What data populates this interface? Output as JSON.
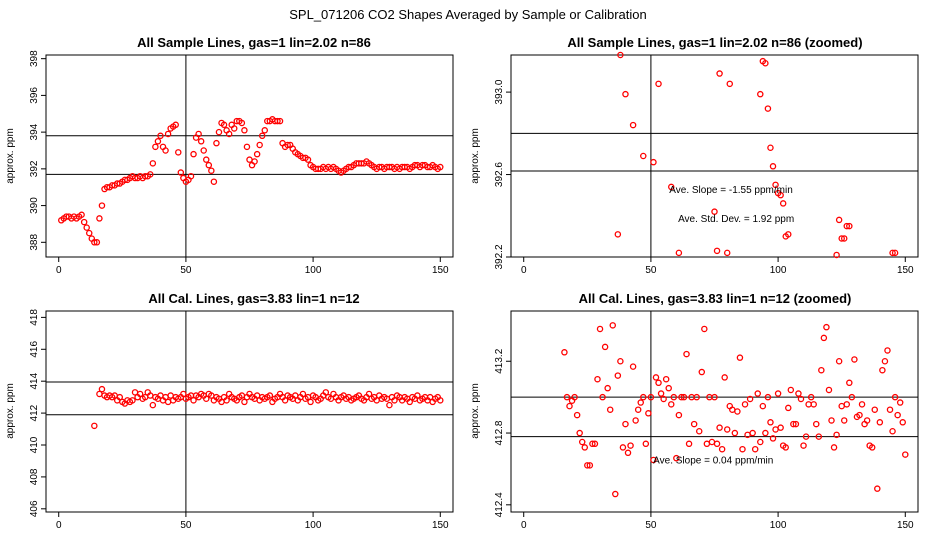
{
  "main_title": "SPL_071206  CO2 Shapes Averaged by Sample or Calibration",
  "colors": {
    "points": "#ff0000",
    "axes": "#000000",
    "background": "#ffffff"
  },
  "chart_data": [
    {
      "id": "p1",
      "type": "scatter",
      "title": "All Sample Lines, gas=1 lin=2.02 n=86",
      "xlabel": "",
      "ylabel": "approx. ppm",
      "xlim": [
        -5,
        155
      ],
      "ylim": [
        387.2,
        398.2
      ],
      "xticks": [
        0,
        50,
        100,
        150
      ],
      "xtick_labels": [
        "0",
        "50",
        "100",
        "150"
      ],
      "yticks": [
        388,
        390,
        392,
        394,
        396,
        398
      ],
      "ytick_labels": [
        "388",
        "390",
        "392",
        "394",
        "396",
        "398"
      ],
      "vlines": [
        50
      ],
      "hlines": [
        393.8,
        391.7
      ],
      "annotations": [],
      "x": [
        1,
        2,
        3,
        4,
        5,
        6,
        7,
        8,
        9,
        10,
        11,
        12,
        13,
        14,
        15,
        16,
        17,
        18,
        19,
        20,
        21,
        22,
        23,
        24,
        25,
        26,
        27,
        28,
        29,
        30,
        31,
        32,
        33,
        34,
        35,
        36,
        37,
        38,
        39,
        40,
        41,
        42,
        43,
        44,
        45,
        46,
        47,
        48,
        49,
        50,
        51,
        52,
        53,
        54,
        55,
        56,
        57,
        58,
        59,
        60,
        61,
        62,
        63,
        64,
        65,
        66,
        67,
        68,
        69,
        70,
        71,
        72,
        73,
        74,
        75,
        76,
        77,
        78,
        79,
        80,
        81,
        82,
        83,
        84,
        85,
        86,
        87,
        88,
        89,
        90,
        91,
        92,
        93,
        94,
        95,
        96,
        97,
        98,
        99,
        100,
        101,
        102,
        103,
        104,
        105,
        106,
        107,
        108,
        109,
        110,
        111,
        112,
        113,
        114,
        115,
        116,
        117,
        118,
        119,
        120,
        121,
        122,
        123,
        124,
        125,
        126,
        127,
        128,
        129,
        130,
        131,
        132,
        133,
        134,
        135,
        136,
        137,
        138,
        139,
        140,
        141,
        142,
        143,
        144,
        145,
        146,
        147,
        148,
        149,
        150
      ],
      "values": [
        389.2,
        389.3,
        389.4,
        389.4,
        389.3,
        389.4,
        389.3,
        389.4,
        389.5,
        389.1,
        388.8,
        388.5,
        388.2,
        388.0,
        388.0,
        389.3,
        390.0,
        390.9,
        391.0,
        391.0,
        391.1,
        391.1,
        391.2,
        391.2,
        391.3,
        391.4,
        391.4,
        391.5,
        391.6,
        391.5,
        391.5,
        391.6,
        391.5,
        391.6,
        391.6,
        391.7,
        392.3,
        393.2,
        393.5,
        393.8,
        393.2,
        393.0,
        393.9,
        394.2,
        394.3,
        394.4,
        392.9,
        391.8,
        391.5,
        391.3,
        391.4,
        391.6,
        392.8,
        393.7,
        393.9,
        393.5,
        393.0,
        392.5,
        392.2,
        391.9,
        391.3,
        393.4,
        394.0,
        394.5,
        394.4,
        394.1,
        393.9,
        394.4,
        394.2,
        394.6,
        394.6,
        394.5,
        394.1,
        393.2,
        392.5,
        392.2,
        392.4,
        392.8,
        393.3,
        393.8,
        394.1,
        394.6,
        394.6,
        394.7,
        394.6,
        394.6,
        394.6,
        393.4,
        393.2,
        393.3,
        393.3,
        393.1,
        392.9,
        392.8,
        392.7,
        392.6,
        392.6,
        392.5,
        392.2,
        392.1,
        392.0,
        392.0,
        392.0,
        392.1,
        392.0,
        392.1,
        392.0,
        392.1,
        392.0,
        391.9,
        391.8,
        391.9,
        392.0,
        392.1,
        392.1,
        392.2,
        392.3,
        392.3,
        392.3,
        392.3,
        392.4,
        392.3,
        392.2,
        392.1,
        392.0,
        392.1,
        392.1,
        392.0,
        392.1,
        392.1,
        392.1,
        392.0,
        392.1,
        392.0,
        392.1,
        392.1,
        392.1,
        392.0,
        392.1,
        392.2,
        392.2,
        392.1,
        392.2,
        392.2,
        392.1,
        392.1,
        392.2,
        392.1,
        392.0,
        392.1
      ]
    },
    {
      "id": "p2",
      "type": "scatter",
      "title": "All Sample Lines, gas=1 lin=2.02 n=86 (zoomed)",
      "xlabel": "",
      "ylabel": "approx. ppm",
      "xlim": [
        -5,
        155
      ],
      "ylim": [
        392.2,
        393.18
      ],
      "xticks": [
        0,
        50,
        100,
        150
      ],
      "xtick_labels": [
        "0",
        "50",
        "100",
        "150"
      ],
      "yticks": [
        392.2,
        392.6,
        393.0
      ],
      "ytick_labels": [
        "392.2",
        "392.6",
        "393.0"
      ],
      "vlines": [
        50
      ],
      "hlines": [
        392.8,
        392.617
      ],
      "annotations": [
        {
          "text": "Ave. Slope =   -1.55  ppm/min",
          "x": 81.5,
          "y": 392.51
        },
        {
          "text": "Ave. Std. Dev. =  1.92  ppm",
          "x": 83.5,
          "y": 392.37
        }
      ],
      "x": [
        37,
        38,
        40,
        43,
        47,
        51,
        53,
        58,
        61,
        75,
        76,
        77,
        80,
        81,
        93,
        94,
        95,
        96,
        97,
        98,
        99,
        100,
        101,
        102,
        103,
        104,
        123,
        124,
        125,
        126,
        127,
        128,
        145,
        146
      ],
      "values": [
        392.31,
        393.18,
        392.99,
        392.84,
        392.69,
        392.66,
        393.04,
        392.54,
        392.22,
        392.42,
        392.23,
        393.09,
        392.22,
        393.04,
        392.99,
        393.15,
        393.14,
        392.92,
        392.73,
        392.64,
        392.55,
        392.51,
        392.5,
        392.46,
        392.3,
        392.31,
        392.21,
        392.38,
        392.29,
        392.29,
        392.35,
        392.35,
        392.22,
        392.22
      ]
    },
    {
      "id": "p3",
      "type": "scatter",
      "title": "All Cal. Lines, gas=3.83 lin=1 n=12",
      "xlabel": "",
      "ylabel": "approx. ppm",
      "xlim": [
        -5,
        155
      ],
      "ylim": [
        405.8,
        418.4
      ],
      "xticks": [
        0,
        50,
        100,
        150
      ],
      "xtick_labels": [
        "0",
        "50",
        "100",
        "150"
      ],
      "yticks": [
        406,
        408,
        410,
        412,
        414,
        416,
        418
      ],
      "ytick_labels": [
        "406",
        "408",
        "410",
        "412",
        "414",
        "416",
        "418"
      ],
      "vlines": [
        50
      ],
      "hlines": [
        413.95,
        411.9
      ],
      "annotations": [],
      "x": [
        14,
        16,
        17,
        18,
        19,
        20,
        21,
        22,
        23,
        24,
        25,
        26,
        27,
        28,
        29,
        30,
        31,
        32,
        33,
        34,
        35,
        36,
        37,
        38,
        39,
        40,
        41,
        42,
        43,
        44,
        45,
        46,
        47,
        48,
        49,
        50,
        51,
        52,
        53,
        54,
        55,
        56,
        57,
        58,
        59,
        60,
        61,
        62,
        63,
        64,
        65,
        66,
        67,
        68,
        69,
        70,
        71,
        72,
        73,
        74,
        75,
        76,
        77,
        78,
        79,
        80,
        81,
        82,
        83,
        84,
        85,
        86,
        87,
        88,
        89,
        90,
        91,
        92,
        93,
        94,
        95,
        96,
        97,
        98,
        99,
        100,
        101,
        102,
        103,
        104,
        105,
        106,
        107,
        108,
        109,
        110,
        111,
        112,
        113,
        114,
        115,
        116,
        117,
        118,
        119,
        120,
        121,
        122,
        123,
        124,
        125,
        126,
        127,
        128,
        129,
        130,
        131,
        132,
        133,
        134,
        135,
        136,
        137,
        138,
        139,
        140,
        141,
        142,
        143,
        144,
        145,
        146,
        147,
        148,
        149,
        150
      ],
      "values": [
        411.2,
        413.2,
        413.5,
        413.1,
        413.0,
        413.1,
        413.0,
        413.1,
        412.8,
        413.0,
        412.7,
        412.6,
        412.8,
        412.7,
        412.8,
        413.3,
        413.0,
        413.2,
        412.9,
        413.0,
        413.3,
        413.1,
        412.5,
        413.0,
        412.9,
        413.1,
        412.8,
        413.0,
        412.7,
        413.1,
        412.8,
        413.0,
        412.9,
        413.0,
        413.2,
        412.9,
        413.0,
        413.1,
        412.8,
        413.1,
        413.0,
        413.2,
        413.1,
        412.9,
        413.2,
        413.1,
        412.8,
        413.0,
        412.9,
        412.7,
        413.0,
        412.8,
        413.2,
        413.0,
        412.9,
        412.8,
        413.0,
        413.1,
        412.7,
        413.0,
        413.2,
        413.0,
        412.9,
        413.1,
        412.8,
        413.0,
        412.9,
        413.0,
        413.1,
        412.7,
        412.9,
        413.0,
        413.2,
        413.0,
        412.8,
        413.1,
        413.0,
        412.9,
        413.1,
        412.8,
        413.0,
        413.2,
        412.9,
        413.0,
        412.7,
        413.1,
        413.0,
        412.8,
        412.9,
        413.1,
        413.3,
        413.0,
        412.9,
        413.2,
        413.0,
        412.8,
        413.0,
        413.1,
        412.9,
        413.0,
        412.8,
        412.9,
        413.0,
        413.1,
        412.9,
        412.8,
        413.0,
        413.2,
        412.9,
        413.0,
        412.8,
        413.1,
        412.9,
        413.0,
        412.9,
        412.5,
        413.0,
        412.8,
        413.1,
        413.0,
        412.8,
        413.0,
        412.9,
        412.7,
        413.0,
        412.9,
        413.1,
        412.8,
        412.9,
        413.0,
        412.8,
        413.0,
        412.7,
        412.9,
        413.0,
        412.8
      ]
    },
    {
      "id": "p4",
      "type": "scatter",
      "title": "All Cal. Lines, gas=3.83 lin=1 n=12 (zoomed)",
      "xlabel": "",
      "ylabel": "approx. ppm",
      "xlim": [
        -5,
        155
      ],
      "ylim": [
        412.36,
        413.48
      ],
      "xticks": [
        0,
        50,
        100,
        150
      ],
      "xtick_labels": [
        "0",
        "50",
        "100",
        "150"
      ],
      "yticks": [
        412.4,
        412.8,
        413.2
      ],
      "ytick_labels": [
        "412.4",
        "412.8",
        "413.2"
      ],
      "vlines": [
        50
      ],
      "hlines": [
        413.0,
        412.78
      ],
      "annotations": [
        {
          "text": "Ave. Slope =  0.04  ppm/min",
          "x": 74.5,
          "y": 412.63
        }
      ],
      "x": [
        16,
        17,
        18,
        19,
        20,
        21,
        22,
        23,
        24,
        25,
        26,
        27,
        28,
        29,
        30,
        31,
        32,
        33,
        34,
        35,
        36,
        37,
        38,
        39,
        40,
        41,
        42,
        43,
        44,
        45,
        46,
        47,
        48,
        49,
        50,
        51,
        52,
        53,
        54,
        55,
        56,
        57,
        58,
        59,
        60,
        61,
        62,
        63,
        64,
        65,
        66,
        67,
        68,
        69,
        70,
        71,
        72,
        73,
        74,
        75,
        76,
        77,
        78,
        79,
        80,
        81,
        82,
        83,
        84,
        85,
        86,
        87,
        88,
        89,
        90,
        91,
        92,
        93,
        94,
        95,
        96,
        97,
        98,
        99,
        100,
        101,
        102,
        103,
        104,
        105,
        106,
        107,
        108,
        109,
        110,
        111,
        112,
        113,
        114,
        115,
        116,
        117,
        118,
        119,
        120,
        121,
        122,
        123,
        124,
        125,
        126,
        127,
        128,
        129,
        130,
        131,
        132,
        133,
        134,
        135,
        136,
        137,
        138,
        139,
        140,
        141,
        142,
        143,
        144,
        145,
        146,
        147,
        148,
        149,
        150
      ],
      "values": [
        413.25,
        413.0,
        412.95,
        412.98,
        413.0,
        412.9,
        412.8,
        412.75,
        412.72,
        412.62,
        412.62,
        412.74,
        412.74,
        413.1,
        413.38,
        413.0,
        413.28,
        413.05,
        412.93,
        413.4,
        412.46,
        413.12,
        413.2,
        412.72,
        412.85,
        412.69,
        412.73,
        413.17,
        412.87,
        412.93,
        412.97,
        413.0,
        412.74,
        412.91,
        413.0,
        412.65,
        413.11,
        413.08,
        413.02,
        412.99,
        413.1,
        413.05,
        412.96,
        413.0,
        412.66,
        412.9,
        413.0,
        413.0,
        413.24,
        412.74,
        413.0,
        412.85,
        413.0,
        412.81,
        413.14,
        413.38,
        412.74,
        413.0,
        412.75,
        413.0,
        412.74,
        412.83,
        412.71,
        413.11,
        412.82,
        412.95,
        412.93,
        412.8,
        412.92,
        413.22,
        412.71,
        412.96,
        412.79,
        412.99,
        412.8,
        412.71,
        413.02,
        412.75,
        412.95,
        412.8,
        413.0,
        412.86,
        412.77,
        412.82,
        413.02,
        412.83,
        412.73,
        412.72,
        412.94,
        413.04,
        412.85,
        412.85,
        413.02,
        412.99,
        412.73,
        412.78,
        412.96,
        413.0,
        412.96,
        412.85,
        412.78,
        413.15,
        413.33,
        413.39,
        413.04,
        412.87,
        412.72,
        412.79,
        413.2,
        412.95,
        412.87,
        412.96,
        413.08,
        413.0,
        413.21,
        412.89,
        412.9,
        412.96,
        412.85,
        412.87,
        412.73,
        412.72,
        412.93,
        412.49,
        412.86,
        413.15,
        413.2,
        413.26,
        412.93,
        412.81,
        413.0,
        412.9,
        412.97,
        412.86,
        412.68
      ]
    }
  ]
}
